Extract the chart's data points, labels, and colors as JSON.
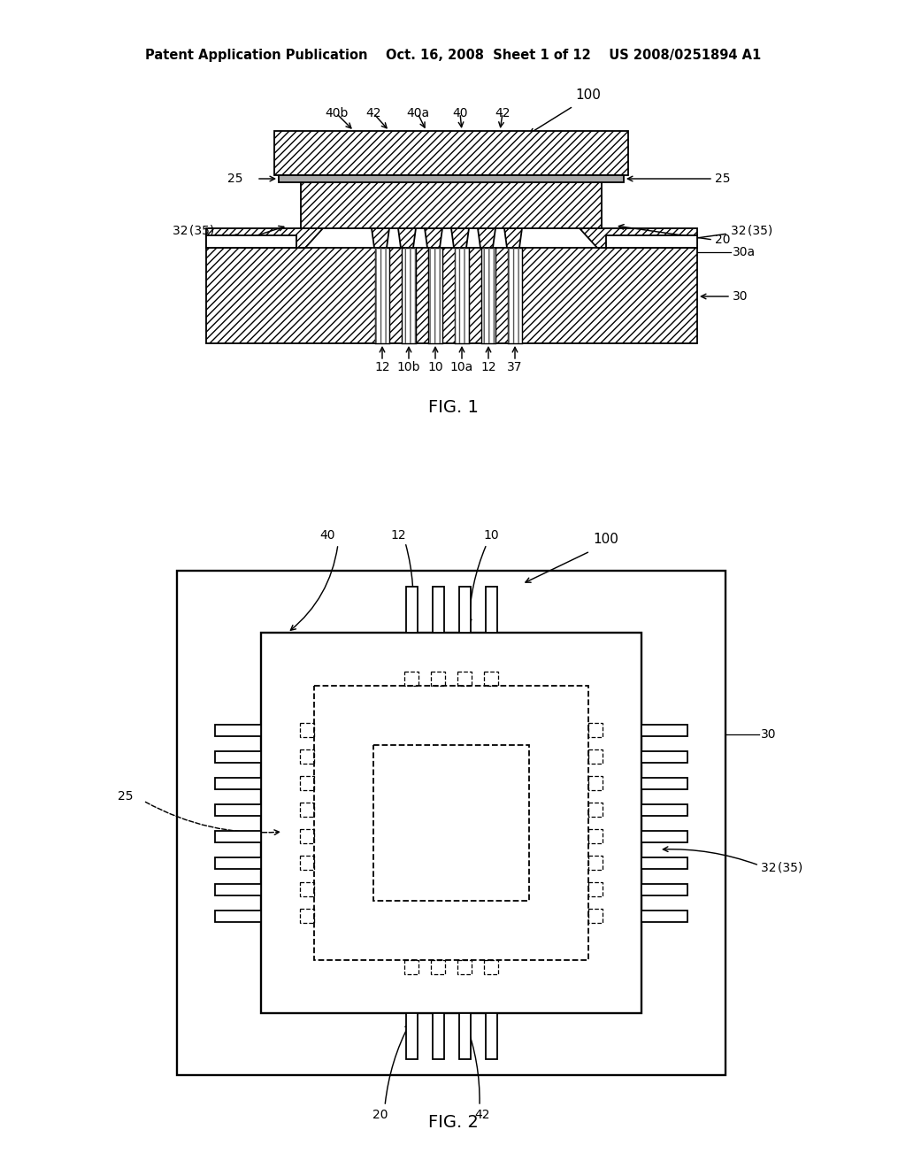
{
  "bg_color": "#ffffff",
  "lc": "#000000",
  "header": "Patent Application Publication    Oct. 16, 2008  Sheet 1 of 12    US 2008/0251894 A1",
  "fig1_title": "FIG. 1",
  "fig2_title": "FIG. 2",
  "header_fs": 10.5,
  "ref_fs": 10,
  "fig_label_fs": 14
}
